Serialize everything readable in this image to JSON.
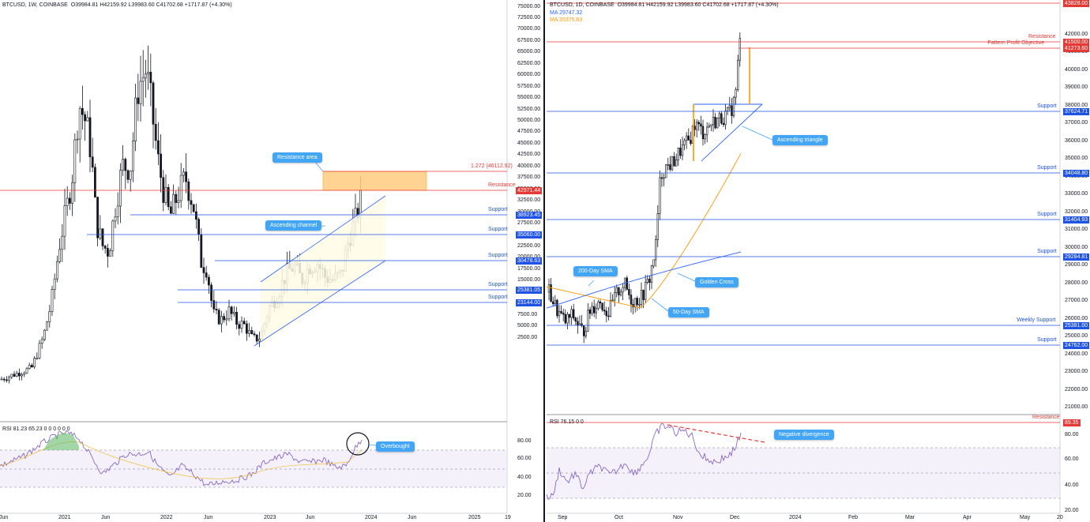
{
  "left_header": {
    "symbol": "BTCUSD, 1W, COINBASE",
    "ohlc": "O39984.81 H42159.92 L39983.60 C41702.68 +1717.87 (+4.30%)"
  },
  "right_header": {
    "symbol": "BTCUSD, 1D, COINBASE",
    "ohlc": "O39984.81 H42159.92 L39983.60 C41702.68 +1717.87 (+4.30%)",
    "ma1": "MA 29747.32",
    "ma2": "MA 35375.63"
  },
  "left_rsi_header": "RSI 81.23 65.23 0 0 0 0 0 0",
  "right_rsi_header": "RSI 76.15 0 0",
  "left_price_axis": [
    "75000.00",
    "72500.00",
    "70000.00",
    "67500.00",
    "65000.00",
    "62500.00",
    "60000.00",
    "57500.00",
    "55000.00",
    "52500.00",
    "50000.00",
    "47500.00",
    "45000.00",
    "42500.00",
    "40000.00",
    "37500.00",
    "35000.00",
    "32500.00",
    "30000.00",
    "27500.00",
    "25000.00",
    "22500.00",
    "20000.00",
    "17500.00",
    "15000.00",
    "12500.00",
    "10000.00",
    "7500.00",
    "5000.00",
    "2500.00"
  ],
  "left_rsi_axis": [
    "80.00",
    "60.00",
    "40.00",
    "20.00"
  ],
  "left_time_axis": [
    "Jun",
    "2021",
    "Jun",
    "2022",
    "Jun",
    "2023",
    "Jun",
    "2024",
    "Jun",
    "2025",
    "19"
  ],
  "right_price_axis": [
    "42000.00",
    "41000.00",
    "40000.00",
    "39000.00",
    "38000.00",
    "37000.00",
    "36000.00",
    "35000.00",
    "34000.00",
    "33000.00",
    "32000.00",
    "31000.00",
    "30000.00",
    "29000.00",
    "28000.00",
    "27000.00",
    "26000.00",
    "25000.00",
    "24000.00",
    "23000.00",
    "22000.00",
    "21000.00"
  ],
  "right_rsi_axis": [
    "80.00",
    "60.00",
    "40.00",
    "20.00"
  ],
  "right_time_axis": [
    "Sep",
    "Oct",
    "Nov",
    "Dec",
    "2024",
    "Feb",
    "Mar",
    "Apr",
    "May",
    "20"
  ],
  "left_levels": [
    {
      "label": "1.272 (46112.92)",
      "badge": "",
      "color": "#e53935"
    },
    {
      "label": "Resistance",
      "badge": "42971.44",
      "color": "#e53935"
    },
    {
      "label": "Support",
      "badge": "38923.45",
      "color": "#1e53e5"
    },
    {
      "label": "Support",
      "badge": "35060.00",
      "color": "#1e53e5"
    },
    {
      "label": "Support",
      "badge": "30478.63",
      "color": "#1e53e5"
    },
    {
      "label": "Support",
      "badge": "25381.05",
      "color": "#1e53e5"
    },
    {
      "label": "Support",
      "badge": "23144.00",
      "color": "#1e53e5"
    }
  ],
  "right_levels": [
    {
      "label": "Resistance",
      "badge": "43828.00",
      "color": "#e53935"
    },
    {
      "label": "Resistance",
      "badge": "41500.00",
      "color": "#e53935"
    },
    {
      "label": "Pattern Profit Objective",
      "badge": "41273.60",
      "color": "#e53935"
    },
    {
      "label": "Support",
      "badge": "37624.71",
      "color": "#1e53e5"
    },
    {
      "label": "Support",
      "badge": "34048.80",
      "color": "#1e53e5"
    },
    {
      "label": "Support",
      "badge": "31404.93",
      "color": "#1e53e5"
    },
    {
      "label": "Support",
      "badge": "29284.81",
      "color": "#1e53e5"
    },
    {
      "label": "Weekly Support",
      "badge": "25381.00",
      "color": "#1e53e5"
    },
    {
      "label": "Support",
      "badge": "24762.00",
      "color": "#1e53e5"
    }
  ],
  "right_rsi_level": {
    "label": "Resistance",
    "badge": "89.35"
  },
  "callouts": {
    "resistance_area": "Resistance area",
    "ascending_channel": "Ascending channel",
    "overbought": "Overbought",
    "ascending_triangle": "Ascending triangle",
    "sma_200": "200-Day SMA",
    "golden_cross": "Golden Cross",
    "sma_50": "50-Day SMA",
    "negative_divergence": "Negative divergence"
  },
  "colors": {
    "bull": "#131722",
    "bear": "#131722",
    "support": "#1e53e5",
    "resistance": "#e53935",
    "ma_fast": "#ff9800",
    "ma_slow": "#2962ff",
    "rsi": "#7e57c2",
    "callout": "#42a5f5"
  },
  "chart_data": [
    {
      "type": "line",
      "title": "BTCUSD, 1W, COINBASE",
      "x": [
        "2021",
        "Jun",
        "2022",
        "Jun",
        "2023",
        "Jun",
        "2024"
      ],
      "series": [
        {
          "values": [
            29000,
            58000,
            40000,
            20000,
            16500,
            29000,
            41700
          ]
        }
      ],
      "ylim": [
        2500,
        75000
      ],
      "levels": [
        46112.92,
        42971.44,
        38923.45,
        35060.0,
        30478.63,
        25381.05,
        23144.0
      ]
    },
    {
      "type": "line",
      "title": "BTCUSD, 1D, COINBASE",
      "x": [
        "Sep",
        "Oct",
        "Nov",
        "Dec"
      ],
      "series": [
        {
          "name": "MA 29747.32",
          "values": [
            26000,
            27500,
            29300,
            29747
          ]
        },
        {
          "name": "MA 35375.63",
          "values": [
            27500,
            26800,
            30500,
            35375
          ]
        }
      ],
      "ylim": [
        20000,
        43828
      ],
      "levels": [
        43828.0,
        41500.0,
        41273.6,
        37624.71,
        34048.8,
        31404.93,
        29284.81,
        25381.0,
        24762.0
      ]
    }
  ]
}
